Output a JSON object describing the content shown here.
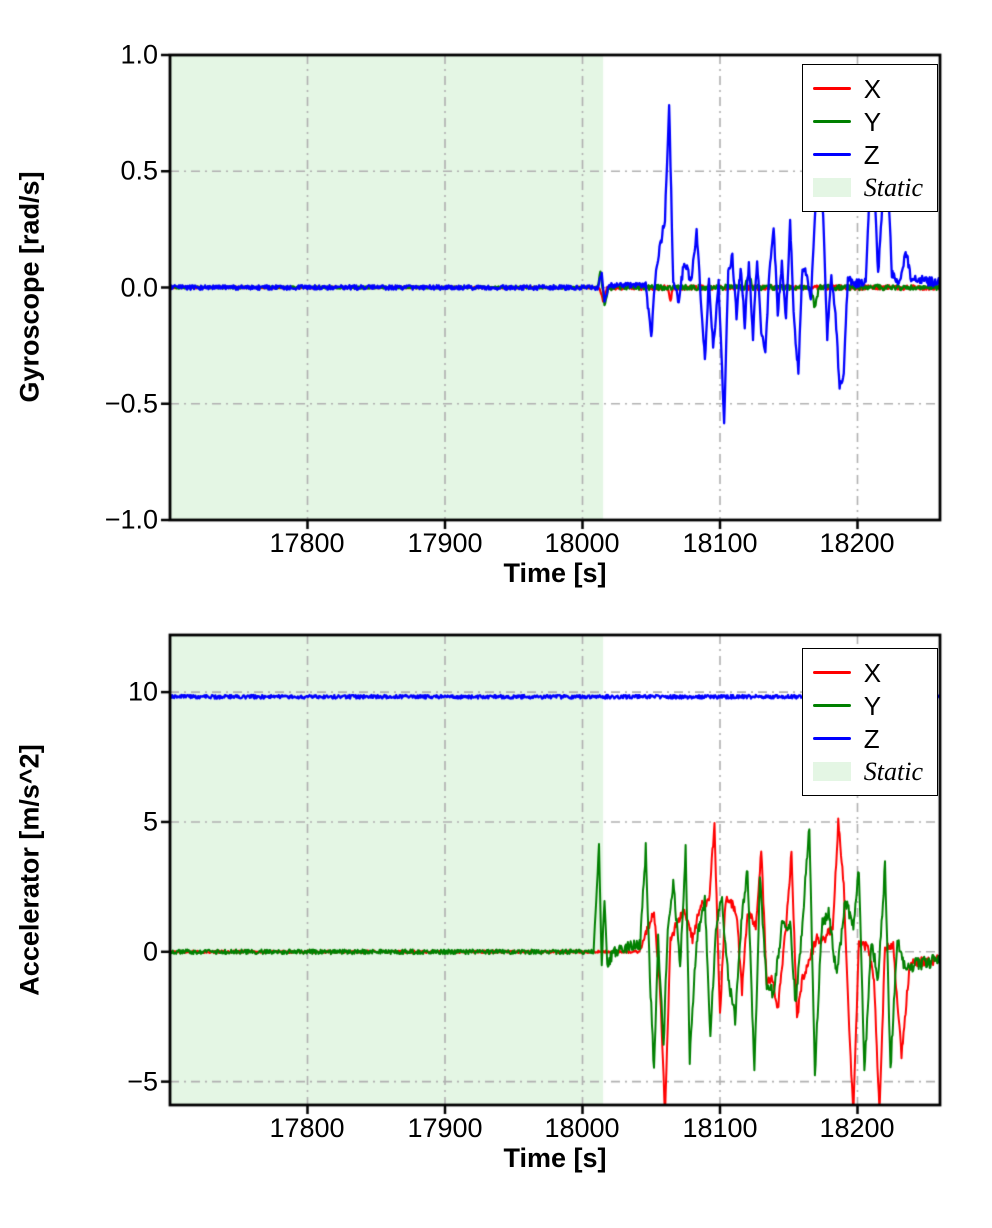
{
  "page": {
    "background": "#ffffff"
  },
  "chart_data": [
    {
      "type": "line",
      "title": "",
      "xlabel": "Time [s]",
      "ylabel": "Gyroscope [rad/s]",
      "xlim": [
        17700,
        18260
      ],
      "ylim": [
        -1.0,
        1.0
      ],
      "grid": {
        "color": "#b0b0b0",
        "style": "dash-dot"
      },
      "legend_position": "upper right",
      "xticks": [
        {
          "value": 17800,
          "label": "17800"
        },
        {
          "value": 17900,
          "label": "17900"
        },
        {
          "value": 18000,
          "label": "18000"
        },
        {
          "value": 18100,
          "label": "18100"
        },
        {
          "value": 18200,
          "label": "18200"
        }
      ],
      "yticks": [
        {
          "value": 1.0,
          "label": "1.0"
        },
        {
          "value": 0.5,
          "label": "0.5"
        },
        {
          "value": 0.0,
          "label": "0.0"
        },
        {
          "value": -0.5,
          "label": "−0.5"
        },
        {
          "value": -1.0,
          "label": "−1.0"
        }
      ],
      "static_region": {
        "start": 17700,
        "end": 18015,
        "color": "#e4f6e4",
        "label": "Static"
      },
      "legend": [
        {
          "label": "X",
          "color": "#ff0000",
          "type": "line"
        },
        {
          "label": "Y",
          "color": "#008000",
          "type": "line"
        },
        {
          "label": "Z",
          "color": "#0000ff",
          "type": "line"
        },
        {
          "label": "Static",
          "color": "#e4f6e4",
          "type": "patch"
        }
      ],
      "series": [
        {
          "name": "X",
          "color": "#ff0000",
          "width": 2.2,
          "noise_static": 0.004,
          "noise_dynamic": 0.01,
          "noise_start": 18015,
          "anchors": [
            [
              17700,
              0
            ],
            [
              18012,
              0
            ],
            [
              18015,
              -0.05
            ],
            [
              18018,
              0
            ],
            [
              18062,
              0
            ],
            [
              18064,
              -0.05
            ],
            [
              18066,
              0
            ],
            [
              18260,
              0
            ]
          ]
        },
        {
          "name": "Y",
          "color": "#008000",
          "width": 2.2,
          "noise_static": 0.005,
          "noise_dynamic": 0.012,
          "noise_start": 18015,
          "anchors": [
            [
              17700,
              0
            ],
            [
              18011,
              0
            ],
            [
              18013,
              0.07
            ],
            [
              18016,
              -0.07
            ],
            [
              18019,
              0
            ],
            [
              18118,
              0
            ],
            [
              18121,
              0.06
            ],
            [
              18124,
              0
            ],
            [
              18166,
              0
            ],
            [
              18169,
              -0.09
            ],
            [
              18172,
              0
            ],
            [
              18260,
              0
            ]
          ]
        },
        {
          "name": "Z",
          "color": "#0000ff",
          "width": 2.3,
          "noise_static": 0.01,
          "noise_dynamic": 0.02,
          "noise_start": 18046,
          "anchors": [
            [
              17700,
              0
            ],
            [
              18011,
              0
            ],
            [
              18014,
              0.06
            ],
            [
              18016,
              -0.06
            ],
            [
              18019,
              0.01
            ],
            [
              18046,
              0.01
            ],
            [
              18050,
              -0.22
            ],
            [
              18053,
              0.05
            ],
            [
              18056,
              0.16
            ],
            [
              18060,
              0.3
            ],
            [
              18063,
              0.79
            ],
            [
              18066,
              0.02
            ],
            [
              18070,
              -0.06
            ],
            [
              18074,
              0.12
            ],
            [
              18079,
              0.02
            ],
            [
              18083,
              0.24
            ],
            [
              18086,
              -0.04
            ],
            [
              18089,
              -0.31
            ],
            [
              18092,
              0.04
            ],
            [
              18095,
              -0.26
            ],
            [
              18099,
              0.02
            ],
            [
              18103,
              -0.58
            ],
            [
              18106,
              0.06
            ],
            [
              18109,
              0.13
            ],
            [
              18112,
              -0.13
            ],
            [
              18115,
              0.09
            ],
            [
              18118,
              -0.16
            ],
            [
              18121,
              0.11
            ],
            [
              18124,
              -0.21
            ],
            [
              18127,
              0.13
            ],
            [
              18130,
              -0.19
            ],
            [
              18133,
              -0.28
            ],
            [
              18136,
              0.09
            ],
            [
              18139,
              0.26
            ],
            [
              18142,
              -0.11
            ],
            [
              18145,
              0.11
            ],
            [
              18148,
              -0.13
            ],
            [
              18151,
              0.28
            ],
            [
              18154,
              -0.16
            ],
            [
              18157,
              -0.36
            ],
            [
              18160,
              0.09
            ],
            [
              18163,
              0.05
            ],
            [
              18166,
              -0.06
            ],
            [
              18169,
              0.31
            ],
            [
              18172,
              0.46
            ],
            [
              18175,
              0.3
            ],
            [
              18178,
              -0.21
            ],
            [
              18181,
              0.05
            ],
            [
              18184,
              -0.12
            ],
            [
              18187,
              -0.43
            ],
            [
              18190,
              -0.36
            ],
            [
              18193,
              0.04
            ],
            [
              18198,
              0.02
            ],
            [
              18206,
              0.02
            ],
            [
              18209,
              0.46
            ],
            [
              18212,
              0.47
            ],
            [
              18215,
              0.05
            ],
            [
              18219,
              0.45
            ],
            [
              18222,
              0.47
            ],
            [
              18225,
              0.06
            ],
            [
              18231,
              0.02
            ],
            [
              18235,
              0.16
            ],
            [
              18239,
              0.04
            ],
            [
              18260,
              0.02
            ]
          ]
        }
      ]
    },
    {
      "type": "line",
      "title": "",
      "xlabel": "Time [s]",
      "ylabel": "Accelerator [m/s^2]",
      "xlim": [
        17700,
        18260
      ],
      "ylim": [
        -5.9,
        12.2
      ],
      "grid": {
        "color": "#b0b0b0",
        "style": "dash-dot"
      },
      "legend_position": "upper right",
      "xticks": [
        {
          "value": 17800,
          "label": "17800"
        },
        {
          "value": 17900,
          "label": "17900"
        },
        {
          "value": 18000,
          "label": "18000"
        },
        {
          "value": 18100,
          "label": "18100"
        },
        {
          "value": 18200,
          "label": "18200"
        }
      ],
      "yticks": [
        {
          "value": 10,
          "label": "10"
        },
        {
          "value": 5,
          "label": "5"
        },
        {
          "value": 0,
          "label": "0"
        },
        {
          "value": -5,
          "label": "−5"
        }
      ],
      "static_region": {
        "start": 17700,
        "end": 18015,
        "color": "#e4f6e4",
        "label": "Static"
      },
      "legend": [
        {
          "label": "X",
          "color": "#ff0000",
          "type": "line"
        },
        {
          "label": "Y",
          "color": "#008000",
          "type": "line"
        },
        {
          "label": "Z",
          "color": "#0000ff",
          "type": "line"
        },
        {
          "label": "Static",
          "color": "#e4f6e4",
          "type": "patch"
        }
      ],
      "series": [
        {
          "name": "X",
          "color": "#ff0000",
          "width": 2.0,
          "noise_static": 0.05,
          "noise_dynamic": 0.18,
          "noise_start": 18042,
          "anchors": [
            [
              17700,
              0
            ],
            [
              18042,
              0
            ],
            [
              18048,
              1.0
            ],
            [
              18052,
              1.5
            ],
            [
              18056,
              -1.0
            ],
            [
              18060,
              -6.3
            ],
            [
              18064,
              0.5
            ],
            [
              18068,
              1.0
            ],
            [
              18074,
              1.6
            ],
            [
              18080,
              0.5
            ],
            [
              18086,
              1.8
            ],
            [
              18092,
              2.0
            ],
            [
              18096,
              4.9
            ],
            [
              18100,
              -2.5
            ],
            [
              18104,
              2.0
            ],
            [
              18108,
              1.9
            ],
            [
              18112,
              1.5
            ],
            [
              18116,
              -1.5
            ],
            [
              18120,
              1.6
            ],
            [
              18126,
              1.0
            ],
            [
              18130,
              3.9
            ],
            [
              18134,
              -1.2
            ],
            [
              18138,
              -1.0
            ],
            [
              18142,
              -2.3
            ],
            [
              18148,
              1.0
            ],
            [
              18152,
              3.8
            ],
            [
              18156,
              -2.6
            ],
            [
              18160,
              -1.0
            ],
            [
              18164,
              -0.5
            ],
            [
              18170,
              0.5
            ],
            [
              18176,
              0.5
            ],
            [
              18182,
              1.0
            ],
            [
              18186,
              5.0
            ],
            [
              18190,
              2.5
            ],
            [
              18194,
              -3.0
            ],
            [
              18197,
              -6.3
            ],
            [
              18201,
              0.3
            ],
            [
              18207,
              0.2
            ],
            [
              18212,
              -1.0
            ],
            [
              18216,
              -6.3
            ],
            [
              18220,
              0.2
            ],
            [
              18226,
              0.2
            ],
            [
              18232,
              -4.0
            ],
            [
              18238,
              -0.5
            ],
            [
              18244,
              -0.4
            ],
            [
              18260,
              -0.3
            ]
          ]
        },
        {
          "name": "Y",
          "color": "#008000",
          "width": 2.0,
          "noise_static": 0.09,
          "noise_dynamic": 0.25,
          "noise_start": 18015,
          "anchors": [
            [
              17700,
              0
            ],
            [
              18008,
              0
            ],
            [
              18012,
              4.1
            ],
            [
              18014,
              -0.6
            ],
            [
              18016,
              2.0
            ],
            [
              18018,
              -0.4
            ],
            [
              18024,
              0.05
            ],
            [
              18042,
              0.3
            ],
            [
              18046,
              4.0
            ],
            [
              18049,
              -1.0
            ],
            [
              18052,
              -4.6
            ],
            [
              18055,
              0.5
            ],
            [
              18059,
              -3.6
            ],
            [
              18062,
              1.0
            ],
            [
              18066,
              2.6
            ],
            [
              18071,
              -0.5
            ],
            [
              18075,
              3.9
            ],
            [
              18078,
              -4.2
            ],
            [
              18083,
              0.5
            ],
            [
              18089,
              2.0
            ],
            [
              18093,
              -3.3
            ],
            [
              18097,
              1.0
            ],
            [
              18101,
              2.2
            ],
            [
              18106,
              -1.0
            ],
            [
              18111,
              -2.6
            ],
            [
              18116,
              1.5
            ],
            [
              18120,
              3.2
            ],
            [
              18125,
              -4.8
            ],
            [
              18129,
              2.8
            ],
            [
              18134,
              -1.2
            ],
            [
              18139,
              -1.6
            ],
            [
              18145,
              1.0
            ],
            [
              18151,
              1.1
            ],
            [
              18155,
              -2.0
            ],
            [
              18159,
              0.5
            ],
            [
              18165,
              4.8
            ],
            [
              18169,
              -4.7
            ],
            [
              18174,
              1.0
            ],
            [
              18179,
              1.5
            ],
            [
              18185,
              -1.0
            ],
            [
              18191,
              2.0
            ],
            [
              18197,
              1.0
            ],
            [
              18201,
              3.2
            ],
            [
              18205,
              -4.7
            ],
            [
              18210,
              0.5
            ],
            [
              18215,
              -1.1
            ],
            [
              18220,
              3.3
            ],
            [
              18224,
              -4.5
            ],
            [
              18229,
              0.5
            ],
            [
              18235,
              -0.8
            ],
            [
              18241,
              -0.5
            ],
            [
              18260,
              -0.3
            ]
          ]
        },
        {
          "name": "Z",
          "color": "#0000ff",
          "width": 2.3,
          "noise_static": 0.07,
          "noise_dynamic": 0.07,
          "noise_start": 18015,
          "anchors": [
            [
              17700,
              9.82
            ],
            [
              18260,
              9.82
            ]
          ]
        }
      ]
    }
  ]
}
